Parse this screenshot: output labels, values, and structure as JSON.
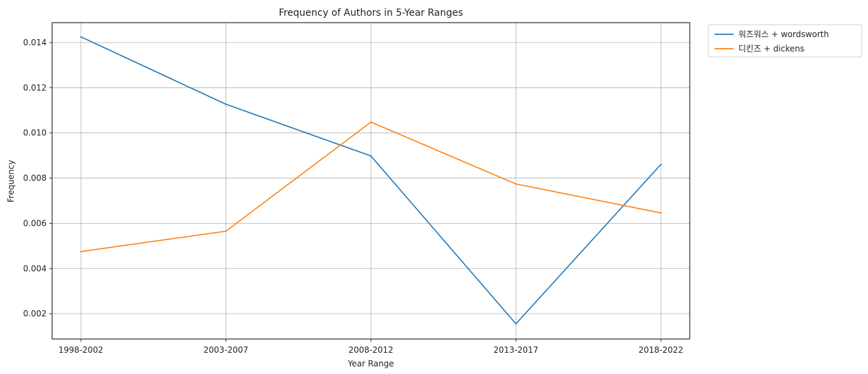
{
  "chart_data": {
    "type": "line",
    "title": "Frequency of Authors in 5-Year Ranges",
    "xlabel": "Year Range",
    "ylabel": "Frequency",
    "categories": [
      "1998-2002",
      "2003-2007",
      "2008-2012",
      "2013-2017",
      "2018-2022"
    ],
    "series": [
      {
        "name": "워즈워스 + wordsworth",
        "color": "#1f77b4",
        "values": [
          0.01425,
          0.01127,
          0.00898,
          0.00155,
          0.00861
        ]
      },
      {
        "name": "디킨즈 + dickens",
        "color": "#ff7f0e",
        "values": [
          0.00475,
          0.00565,
          0.01048,
          0.00774,
          0.00646
        ]
      }
    ],
    "ylim": [
      0.00088,
      0.01488
    ],
    "yticks": [
      "0.002",
      "0.004",
      "0.006",
      "0.008",
      "0.010",
      "0.012",
      "0.014"
    ],
    "grid": true,
    "legend_position": "outside-top-right"
  }
}
